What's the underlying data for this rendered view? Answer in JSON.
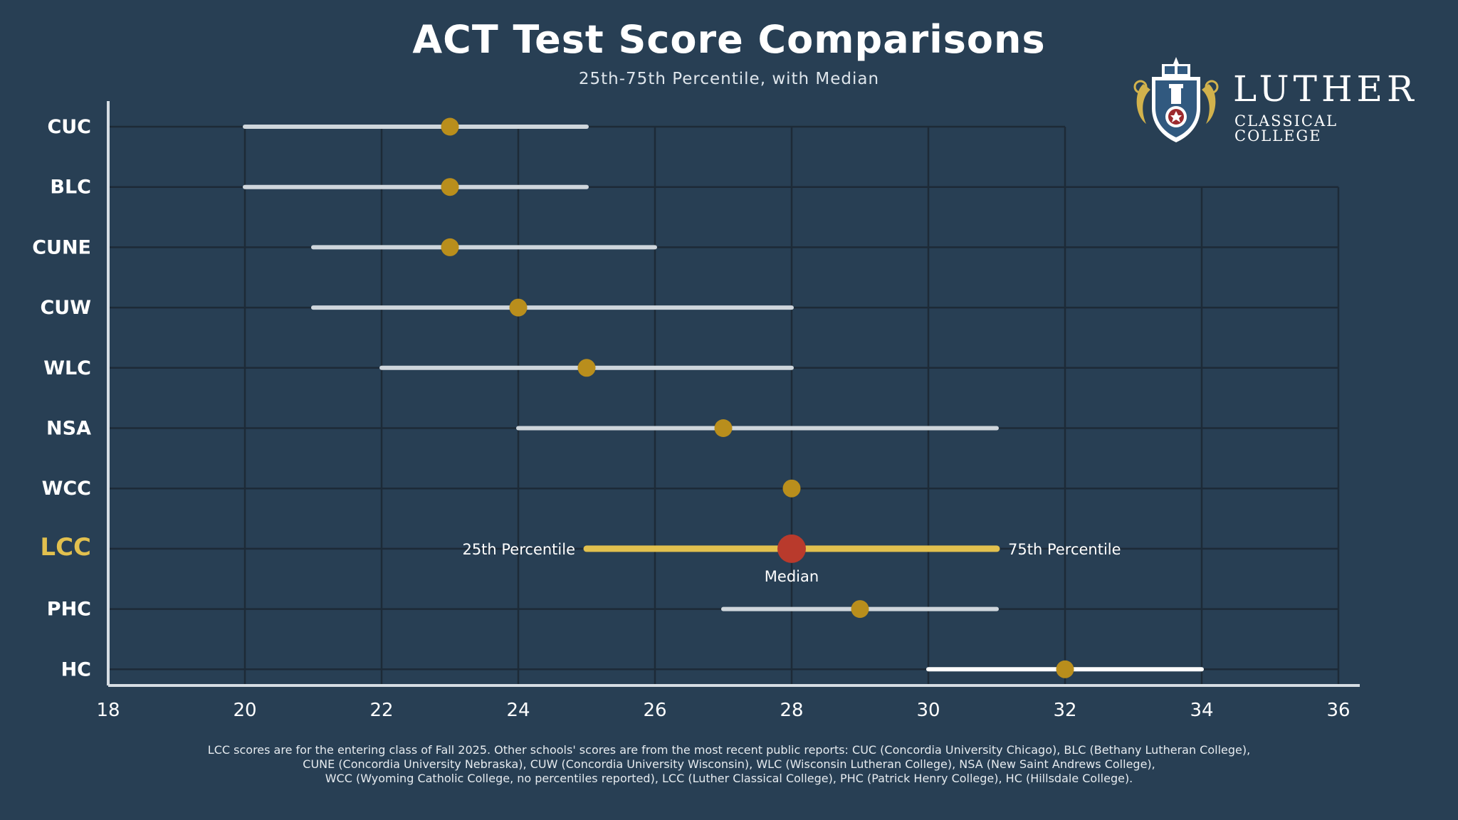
{
  "chart_data": {
    "type": "range",
    "title": "ACT Test Score Comparisons",
    "subtitle": "25th-75th Percentile, with Median",
    "xlim": [
      18,
      36
    ],
    "x_ticks": [
      "18",
      "20",
      "22",
      "24",
      "26",
      "28",
      "30",
      "32",
      "34",
      "36"
    ],
    "x_tick_values": [
      18,
      20,
      22,
      24,
      26,
      28,
      30,
      32,
      34,
      36
    ],
    "grid": true,
    "categories": [
      "CUC",
      "BLC",
      "CUNE",
      "CUW",
      "WLC",
      "NSA",
      "WCC",
      "LCC",
      "PHC",
      "HC"
    ],
    "series": [
      {
        "name": "CUC",
        "p25": 20,
        "median": 23,
        "p75": 25
      },
      {
        "name": "BLC",
        "p25": 20,
        "median": 23,
        "p75": 25
      },
      {
        "name": "CUNE",
        "p25": 21,
        "median": 23,
        "p75": 26
      },
      {
        "name": "CUW",
        "p25": 21,
        "median": 24,
        "p75": 28
      },
      {
        "name": "WLC",
        "p25": 22,
        "median": 25,
        "p75": 28
      },
      {
        "name": "NSA",
        "p25": 24,
        "median": 27,
        "p75": 31
      },
      {
        "name": "WCC",
        "p25": null,
        "median": 28,
        "p75": null
      },
      {
        "name": "LCC",
        "p25": 25,
        "median": 28,
        "p75": 31,
        "highlight": true
      },
      {
        "name": "PHC",
        "p25": 27,
        "median": 29,
        "p75": 31
      },
      {
        "name": "HC",
        "p25": 30,
        "median": 32,
        "p75": 34
      }
    ],
    "annotations": {
      "p25_label": "25th Percentile",
      "p75_label": "75th Percentile",
      "median_label": "Median"
    },
    "colors": {
      "background": "#283f54",
      "grid": "#1d2a37",
      "range": "#cfd6dc",
      "median": "#b98e1c",
      "highlight_range": "#e2c04e",
      "highlight_median": "#b93a2c",
      "highlight_label": "#e2c04e"
    }
  },
  "logo": {
    "name": "LUTHER",
    "tagline": "CLASSICAL COLLEGE",
    "icon": "shield-crest-icon"
  },
  "footnote": [
    "LCC scores are for the entering class of Fall 2025. Other schools' scores are from the most recent public reports: CUC (Concordia University Chicago), BLC (Bethany Lutheran College),",
    "CUNE (Concordia University Nebraska), CUW (Concordia University Wisconsin), WLC (Wisconsin Lutheran College), NSA (New Saint Andrews College),",
    "WCC (Wyoming Catholic College, no percentiles reported), LCC (Luther Classical College), PHC (Patrick Henry College), HC (Hillsdale College)."
  ]
}
